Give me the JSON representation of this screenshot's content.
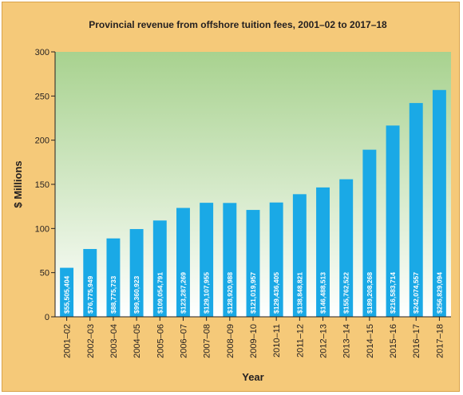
{
  "chart_data": {
    "type": "bar",
    "title": "Provincial revenue from offshore tuition fees, 2001–02 to 2017–18",
    "xlabel": "Year",
    "ylabel": "$ Millions",
    "ylim": [
      0,
      300
    ],
    "yticks": [
      0,
      50,
      100,
      150,
      200,
      250,
      300
    ],
    "grid": false,
    "legend": "none",
    "bar_color": "#1aa9e6",
    "plot_background": [
      "#a8d28f",
      "#ffffff"
    ],
    "categories": [
      "2001–02",
      "2002–03",
      "2003–04",
      "2004–05",
      "2005–06",
      "2006–07",
      "2007–08",
      "2008–09",
      "2009–10",
      "2010–11",
      "2011–12",
      "2012–13",
      "2013–14",
      "2014–15",
      "2015–16",
      "2016–17",
      "2017–18"
    ],
    "values": [
      55.505404,
      76.775949,
      88.775733,
      99.360923,
      109.054791,
      123.287269,
      129.107955,
      128.920988,
      121.019957,
      129.436405,
      138.848821,
      146.488513,
      155.762522,
      189.208268,
      216.583714,
      242.074557,
      256.829094
    ],
    "data_labels": [
      "$55,505,404",
      "$76,775,949",
      "$88,775,733",
      "$99,360,923",
      "$109,054,791",
      "$123,287,269",
      "$129,107,955",
      "$128,920,988",
      "$121,019,957",
      "$129,436,405",
      "$138,848,821",
      "$146,488,513",
      "$155,762,522",
      "$189,208,268",
      "$216,583,714",
      "$242,074,557",
      "$256,829,094"
    ]
  }
}
